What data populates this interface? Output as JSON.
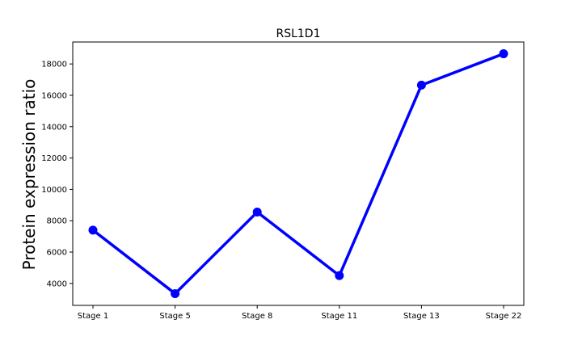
{
  "chart_data": {
    "type": "line",
    "title": "RSL1D1",
    "xlabel": "",
    "ylabel": "Protein expression ratio",
    "categories": [
      "Stage 1",
      "Stage 5",
      "Stage 8",
      "Stage 11",
      "Stage 13",
      "Stage 22"
    ],
    "values": [
      7400,
      3350,
      8550,
      4500,
      16650,
      18650
    ],
    "ylim": [
      2600,
      19400
    ],
    "yticks": [
      4000,
      6000,
      8000,
      10000,
      12000,
      14000,
      16000,
      18000
    ],
    "color": "#0000ff",
    "grid": false,
    "legend": "none"
  }
}
